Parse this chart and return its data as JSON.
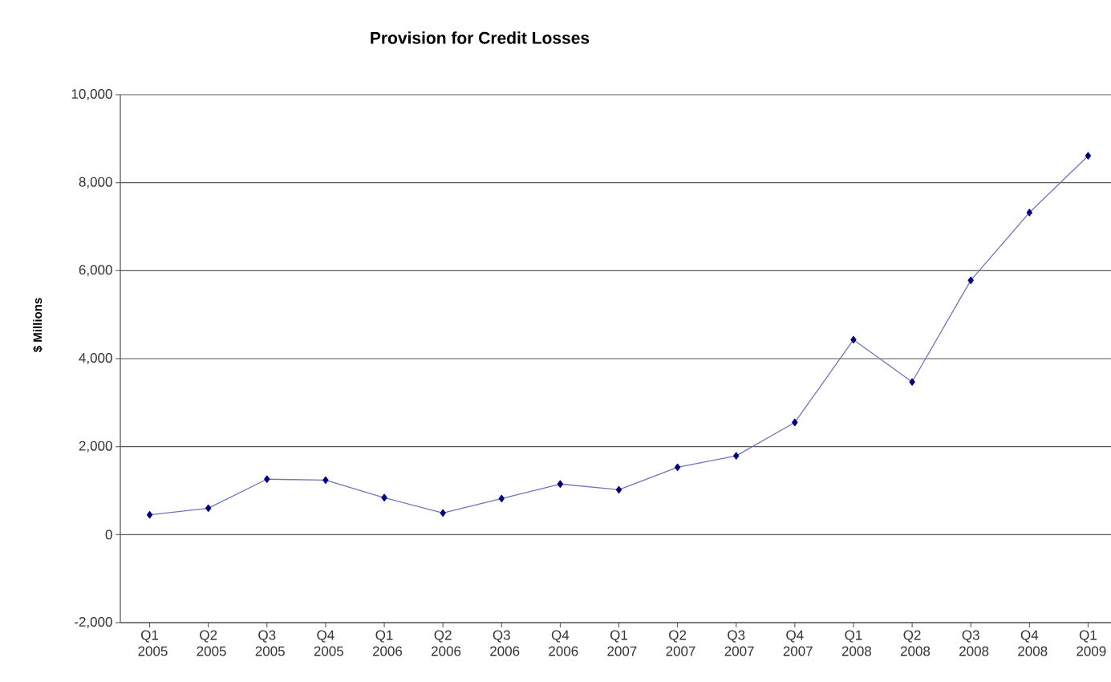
{
  "chart_data": {
    "type": "line",
    "title": "Provision for Credit Losses",
    "ylabel": "$ Millions",
    "categories": [
      "Q1 2005",
      "Q2 2005",
      "Q3 2005",
      "Q4 2005",
      "Q1 2006",
      "Q2 2006",
      "Q3 2006",
      "Q4 2006",
      "Q1 2007",
      "Q2 2007",
      "Q3 2007",
      "Q4 2007",
      "Q1 2008",
      "Q2 2008",
      "Q3 2008",
      "Q4 2008",
      "Q1 2009"
    ],
    "series": [
      {
        "color": "#000080",
        "values": [
          450,
          600,
          1260,
          1240,
          840,
          490,
          820,
          1150,
          1020,
          1530,
          1790,
          2550,
          4430,
          3470,
          5780,
          7320,
          8610
        ]
      }
    ],
    "ylim": [
      -2000,
      10000
    ],
    "yticks": [
      {
        "value": -2000,
        "label": "-2,000"
      },
      0,
      {
        "value": 2000,
        "label": "2,000"
      },
      {
        "value": 4000,
        "label": "4,000"
      },
      {
        "value": 6000,
        "label": "6,000"
      },
      {
        "value": 8000,
        "label": "8,000"
      },
      {
        "value": 10000,
        "label": "10,000"
      }
    ],
    "grid": "y",
    "marker": "diamond",
    "line_style": "solid"
  }
}
